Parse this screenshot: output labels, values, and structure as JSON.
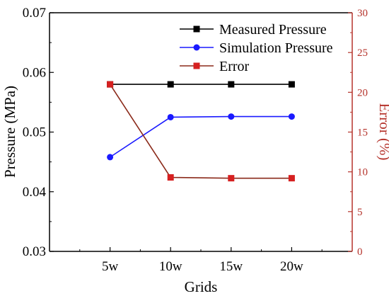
{
  "chart_data": {
    "type": "line",
    "categories": [
      "5w",
      "10w",
      "15w",
      "20w"
    ],
    "xlabel": "Grids",
    "ylabel": "Pressure (MPa)",
    "ylabel_right": "Error (%)",
    "ylim": [
      0.03,
      0.07
    ],
    "yticks": [
      "0.03",
      "0.04",
      "0.05",
      "0.06",
      "0.07"
    ],
    "ylim_right": [
      0,
      30
    ],
    "yticks_right": [
      "0",
      "5",
      "10",
      "15",
      "20",
      "25",
      "30"
    ],
    "grid": false,
    "legend_position": "top-right",
    "series": [
      {
        "name": "Measured Pressure",
        "axis": "left",
        "marker": "square",
        "color": "#000000",
        "values": [
          0.058,
          0.058,
          0.058,
          0.058
        ]
      },
      {
        "name": "Simulation Pressure",
        "axis": "left",
        "marker": "circle",
        "color": "#1a1aff",
        "values": [
          0.0458,
          0.0525,
          0.0526,
          0.0526
        ]
      },
      {
        "name": "Error",
        "axis": "right",
        "marker": "square",
        "color": "#d62020",
        "line_color": "#8b2a1a",
        "values": [
          21.0,
          9.3,
          9.2,
          9.2
        ]
      }
    ]
  }
}
